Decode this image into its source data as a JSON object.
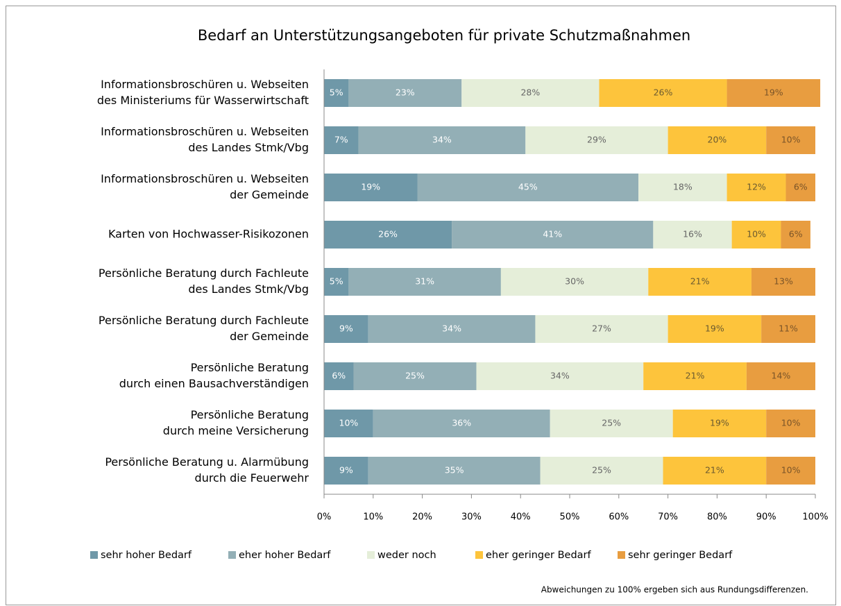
{
  "chart_data": {
    "type": "stacked-bar-horizontal",
    "title": "Bedarf an Unterstützungsangeboten für private Schutzmaßnahmen",
    "categories": [
      [
        "Informationsbroschüren u. Webseiten",
        "des Ministeriums für Wasserwirtschaft"
      ],
      [
        "Informationsbroschüren u. Webseiten",
        "des Landes Stmk/Vbg"
      ],
      [
        "Informationsbroschüren u. Webseiten",
        "der Gemeinde"
      ],
      [
        "Karten von Hochwasser-Risikozonen"
      ],
      [
        "Persönliche Beratung durch Fachleute",
        "des Landes Stmk/Vbg"
      ],
      [
        "Persönliche Beratung durch Fachleute",
        "der Gemeinde"
      ],
      [
        "Persönliche Beratung",
        "durch einen Bausachverständigen"
      ],
      [
        "Persönliche Beratung",
        "durch meine Versicherung"
      ],
      [
        "Persönliche Beratung u. Alarmübung",
        "durch die Feuerwehr"
      ]
    ],
    "series": [
      {
        "name": "sehr hoher Bedarf",
        "color": "#6f98a8",
        "label_color": "#ffffff",
        "values": [
          5,
          7,
          19,
          26,
          5,
          9,
          6,
          10,
          9
        ],
        "value_labels": [
          "5%",
          "7%",
          "19%",
          "26%",
          "5%",
          "9%",
          "6%",
          "10%",
          "9%"
        ]
      },
      {
        "name": "eher hoher Bedarf",
        "color": "#93afb6",
        "label_color": "#ffffff",
        "values": [
          23,
          34,
          45,
          41,
          31,
          34,
          25,
          36,
          35
        ],
        "value_labels": [
          "23%",
          "34%",
          "45%",
          "41%",
          "31%",
          "34%",
          "25%",
          "36%",
          "35%"
        ]
      },
      {
        "name": "weder noch",
        "color": "#e5eed9",
        "label_color": "#666666",
        "values": [
          28,
          29,
          18,
          16,
          30,
          27,
          34,
          25,
          25
        ],
        "value_labels": [
          "28%",
          "29%",
          "18%",
          "16%",
          "30%",
          "27%",
          "34%",
          "25%",
          "25%"
        ]
      },
      {
        "name": "eher geringer Bedarf",
        "color": "#fdc43c",
        "label_color": "#6b5a30",
        "values": [
          26,
          20,
          12,
          10,
          21,
          19,
          21,
          19,
          21
        ],
        "value_labels": [
          "26%",
          "20%",
          "12%",
          "10%",
          "21%",
          "19%",
          "21%",
          "19%",
          "21%"
        ]
      },
      {
        "name": "sehr geringer Bedarf",
        "color": "#e89d40",
        "label_color": "#7a5428",
        "values": [
          19,
          10,
          6,
          6,
          13,
          11,
          14,
          10,
          10
        ],
        "value_labels": [
          "19%",
          "10%",
          "6%",
          "6%",
          "13%",
          "11%",
          "14%",
          "10%",
          "10%"
        ]
      }
    ],
    "xlim": [
      0,
      100
    ],
    "xticks": [
      {
        "value": 0,
        "label": "0%"
      },
      {
        "value": 10,
        "label": "10%"
      },
      {
        "value": 20,
        "label": "20%"
      },
      {
        "value": 30,
        "label": "30%"
      },
      {
        "value": 40,
        "label": "40%"
      },
      {
        "value": 50,
        "label": "50%"
      },
      {
        "value": 60,
        "label": "60%"
      },
      {
        "value": 70,
        "label": "70%"
      },
      {
        "value": 80,
        "label": "80%"
      },
      {
        "value": 90,
        "label": "90%"
      },
      {
        "value": 100,
        "label": "100%"
      }
    ],
    "legend": "bottom",
    "footnote": "Abweichungen zu 100% ergeben sich aus Rundungsdifferenzen."
  }
}
